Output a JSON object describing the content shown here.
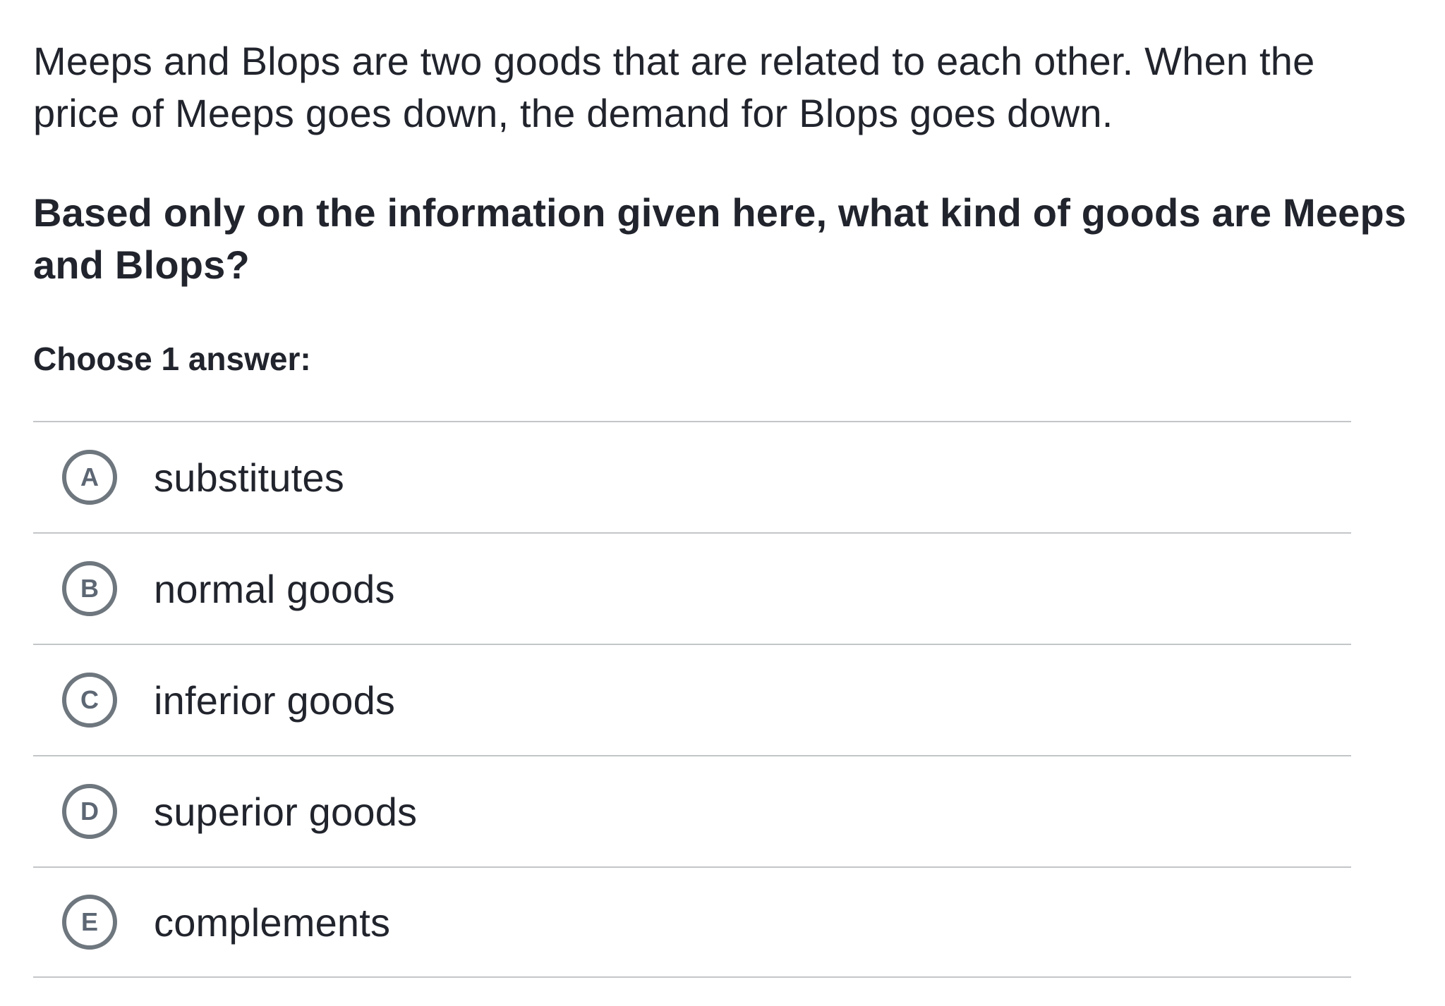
{
  "question": {
    "paragraph": "Meeps and Blops are two goods that are related to each other. When the\nprice of Meeps goes down, the demand for Blops goes down.",
    "prompt": "Based only on the information given here, what kind of goods are Meeps\nand Blops?",
    "choose_label": "Choose 1 answer:"
  },
  "answers": [
    {
      "letter": "A",
      "label": "substitutes"
    },
    {
      "letter": "B",
      "label": "normal goods"
    },
    {
      "letter": "C",
      "label": "inferior goods"
    },
    {
      "letter": "D",
      "label": "superior goods"
    },
    {
      "letter": "E",
      "label": "complements"
    }
  ],
  "colors": {
    "text": "#21242c",
    "radio_border": "#6e767e",
    "radio_letter": "#5d6774",
    "divider": "#c3c6c8",
    "background": "#ffffff"
  }
}
